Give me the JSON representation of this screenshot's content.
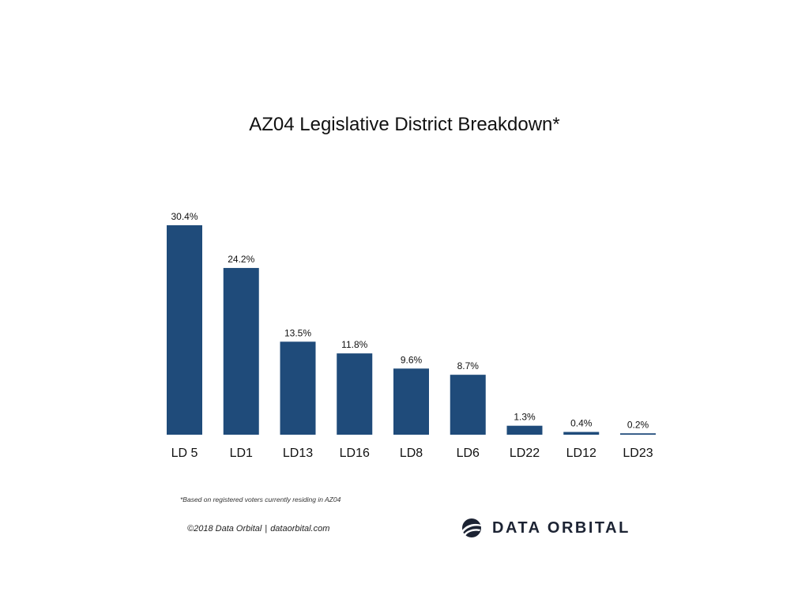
{
  "chart_data": {
    "type": "bar",
    "title": "AZ04 Legislative District Breakdown*",
    "categories": [
      "LD 5",
      "LD1",
      "LD13",
      "LD16",
      "LD8",
      "LD6",
      "LD22",
      "LD12",
      "LD23"
    ],
    "values": [
      30.4,
      24.2,
      13.5,
      11.8,
      9.6,
      8.7,
      1.3,
      0.4,
      0.2
    ],
    "data_labels": [
      "30.4%",
      "24.2%",
      "13.5%",
      "11.8%",
      "9.6%",
      "8.7%",
      "1.3%",
      "0.4%",
      "0.2%"
    ],
    "unit": "%",
    "xlabel": "",
    "ylabel": "",
    "ylim": [
      0,
      30.4
    ],
    "grid": false,
    "legend": "none",
    "bar_color": "#1f4b7a"
  },
  "footnote": "*Based on registered voters currently residing in AZ04",
  "footer": {
    "copyright": "©2018 Data Orbital",
    "separator": "|",
    "website": "dataorbital.com"
  },
  "logo": {
    "text": "DATA ORBITAL",
    "icon": "orbital-globe-icon",
    "color": "#1c2333"
  }
}
